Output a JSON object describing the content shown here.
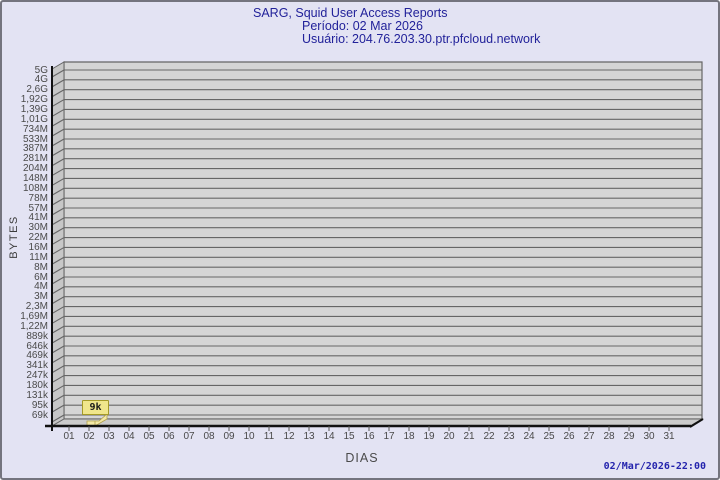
{
  "header": {
    "line1": "SARG, Squid User Access Reports",
    "line2": "Período: 02 Mar 2026",
    "line3": "Usuário: 204.76.203.30.ptr.pfcloud.network"
  },
  "axes": {
    "x_title": "DIAS",
    "y_title": "BYTES"
  },
  "footer": {
    "generated": "02/Mar/2026-22:00"
  },
  "colors": {
    "background": "#e3e3f3",
    "plot_wall": "#d5d5d5",
    "side_wall": "#c7c7c7",
    "floor": "#cbcbcb",
    "grid": "#666666",
    "axis": "#111111",
    "title_text": "#22229a",
    "tick_text": "#4a4a4a",
    "timestamp_text": "#2424ad",
    "bar_fill": "#f3e8a6",
    "bar_stroke": "#b1a24b",
    "annotation_bg": "#f0e68c",
    "annotation_border": "#a59a28"
  },
  "chart_data": {
    "type": "bar",
    "title": "SARG, Squid User Access Reports",
    "subtitle_period": "Período: 02 Mar 2026",
    "subtitle_user": "Usuário: 204.76.203.30.ptr.pfcloud.network",
    "xlabel": "DIAS",
    "ylabel": "BYTES",
    "y_scale": "log",
    "grid": true,
    "legend_position": "none",
    "style": "3d-bar",
    "y_tick_labels": [
      "5G",
      "4G",
      "2,6G",
      "1,92G",
      "1,39G",
      "1,01G",
      "734M",
      "533M",
      "387M",
      "281M",
      "204M",
      "148M",
      "108M",
      "78M",
      "57M",
      "41M",
      "30M",
      "22M",
      "16M",
      "11M",
      "8M",
      "6M",
      "4M",
      "3M",
      "2,3M",
      "1,69M",
      "1,22M",
      "889k",
      "646k",
      "469k",
      "341k",
      "247k",
      "180k",
      "131k",
      "95k",
      "69k"
    ],
    "x_tick_labels": [
      "01",
      "02",
      "03",
      "04",
      "05",
      "06",
      "07",
      "08",
      "09",
      "10",
      "11",
      "12",
      "13",
      "14",
      "15",
      "16",
      "17",
      "18",
      "19",
      "20",
      "21",
      "22",
      "23",
      "24",
      "25",
      "26",
      "27",
      "28",
      "29",
      "30",
      "31"
    ],
    "values_bytes": [
      0,
      9000,
      0,
      0,
      0,
      0,
      0,
      0,
      0,
      0,
      0,
      0,
      0,
      0,
      0,
      0,
      0,
      0,
      0,
      0,
      0,
      0,
      0,
      0,
      0,
      0,
      0,
      0,
      0,
      0,
      0
    ],
    "annotation": {
      "day": "02",
      "label": "9k"
    }
  }
}
